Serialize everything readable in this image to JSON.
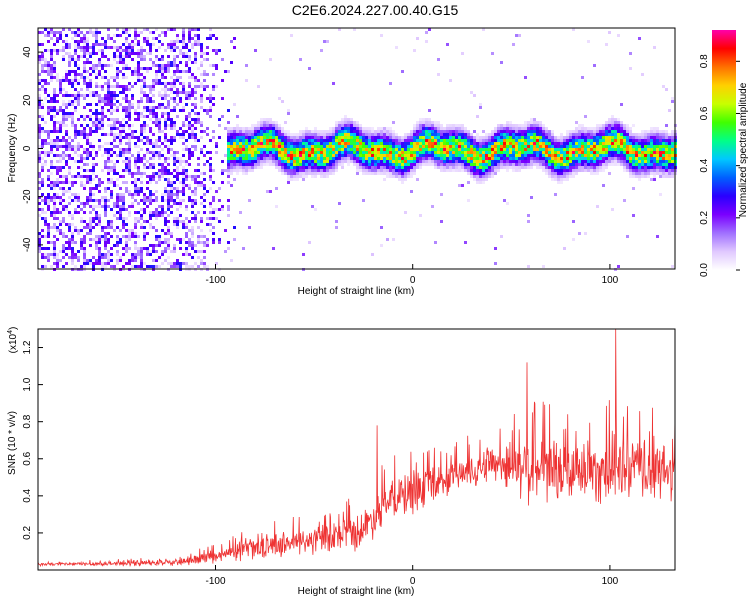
{
  "title": "C2E6.2024.227.00.40.G15",
  "chart_data": [
    {
      "type": "heatmap",
      "xlabel": "Height of straight line (km)",
      "ylabel": "Frequency (Hz)",
      "xlim": [
        -190,
        133
      ],
      "ylim": [
        -50,
        50
      ],
      "x_ticks": [
        -100,
        0,
        100
      ],
      "y_ticks": [
        -40,
        -20,
        0,
        20,
        40
      ],
      "colorbar": {
        "label": "Normalized spectral amplitude",
        "range": [
          0.0,
          0.92
        ],
        "ticks": [
          "0.0",
          "0.2",
          "0.4",
          "0.6",
          "0.8"
        ],
        "colors": [
          "#ffffff",
          "#e0c8ff",
          "#a070ff",
          "#7a00ff",
          "#2a00ff",
          "#0060ff",
          "#00c8ff",
          "#00ff88",
          "#40ff00",
          "#c8ff00",
          "#ffd000",
          "#ff7000",
          "#ff0000",
          "#ff00aa"
        ]
      },
      "ridge": {
        "x_start": -95,
        "x_end": 133,
        "center_hz": 0,
        "half_width_hz": 4,
        "peak_amplitude": 0.9
      },
      "noise_region": {
        "x_start": -190,
        "x_end": -90,
        "amplitude": 0.3
      }
    },
    {
      "type": "line",
      "xlabel": "Height of straight line (km)",
      "ylabel": "SNR (10 * v/v)",
      "y_multiplier": "(x10",
      "y_multiplier_exp": "4",
      "multiplier_close": ")",
      "xlim": [
        -190,
        133
      ],
      "ylim": [
        0,
        1.3
      ],
      "x_ticks": [
        -100,
        0,
        100
      ],
      "y_ticks": [
        "0.2",
        "0.4",
        "0.6",
        "0.8",
        "1.0",
        "1.2"
      ],
      "color": "#ee3333",
      "envelope": {
        "x": [
          -190,
          -150,
          -120,
          -100,
          -80,
          -60,
          -40,
          -25,
          -15,
          0,
          20,
          40,
          60,
          80,
          100,
          120,
          133
        ],
        "mean": [
          0.03,
          0.035,
          0.04,
          0.07,
          0.12,
          0.15,
          0.17,
          0.22,
          0.35,
          0.42,
          0.5,
          0.58,
          0.55,
          0.52,
          0.55,
          0.54,
          0.52
        ],
        "spread": [
          0.01,
          0.015,
          0.02,
          0.04,
          0.07,
          0.08,
          0.1,
          0.12,
          0.13,
          0.14,
          0.1,
          0.12,
          0.22,
          0.2,
          0.22,
          0.2,
          0.18
        ],
        "peaks": [
          {
            "x": 103,
            "y": 1.3
          },
          {
            "x": 58,
            "y": 1.12
          },
          {
            "x": -18,
            "y": 0.78
          },
          {
            "x": 38,
            "y": 0.62
          }
        ]
      }
    }
  ]
}
